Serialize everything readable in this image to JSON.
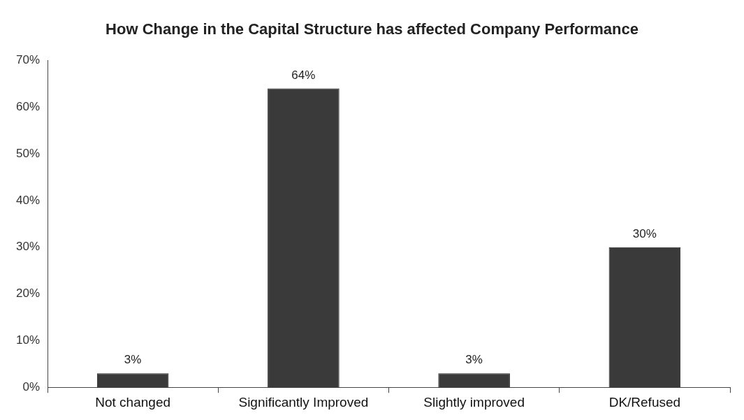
{
  "chart_data": {
    "type": "bar",
    "title": "How Change in the Capital Structure has affected Company Performance",
    "categories": [
      "Not changed",
      "Significantly Improved",
      "Slightly improved",
      "DK/Refused"
    ],
    "values": [
      3,
      64,
      3,
      30
    ],
    "color": "#3a3a3a",
    "ylim": [
      0,
      70
    ],
    "yticks": [
      {
        "value": 0,
        "label": "0%"
      },
      {
        "value": 10,
        "label": "10%"
      },
      {
        "value": 20,
        "label": "20%"
      },
      {
        "value": 30,
        "label": "30%"
      },
      {
        "value": 40,
        "label": "40%"
      },
      {
        "value": 50,
        "label": "50%"
      },
      {
        "value": 60,
        "label": "60%"
      },
      {
        "value": 70,
        "label": "70%"
      }
    ],
    "value_labels": [
      "3%",
      "64%",
      "3%",
      "30%"
    ],
    "grid": false,
    "legend": false
  }
}
